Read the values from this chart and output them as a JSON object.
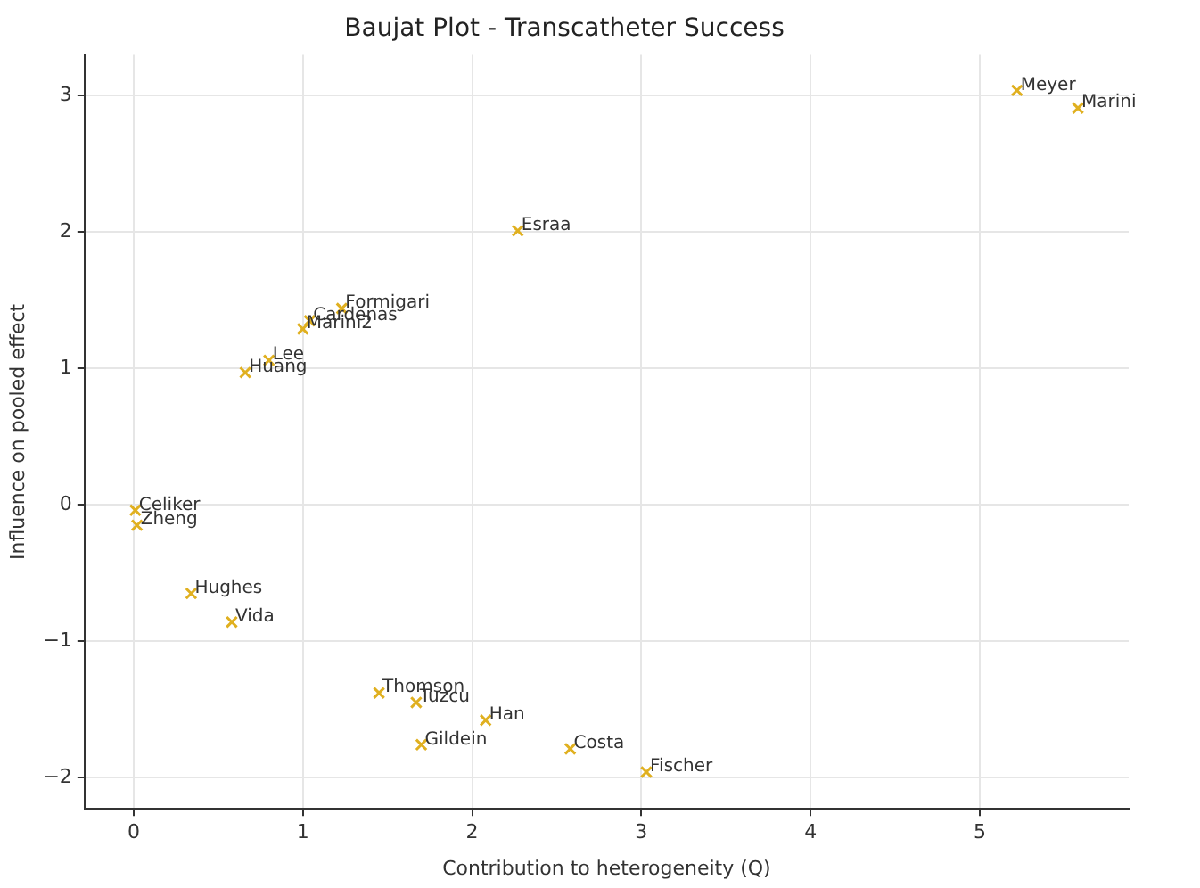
{
  "chart_data": {
    "type": "scatter",
    "title": "Baujat Plot - Transcatheter Success",
    "xlabel": "Contribution to heterogeneity (Q)",
    "ylabel": "Influence on pooled effect",
    "x": [
      5.22,
      5.58,
      2.27,
      1.23,
      1.04,
      1.0,
      0.8,
      0.66,
      0.01,
      0.02,
      0.34,
      0.58,
      1.45,
      1.67,
      1.7,
      2.08,
      2.58,
      3.03
    ],
    "values": [
      3.04,
      2.91,
      2.01,
      1.44,
      1.35,
      1.29,
      1.06,
      0.97,
      -0.04,
      -0.15,
      -0.65,
      -0.86,
      -1.38,
      -1.45,
      -1.76,
      -1.58,
      -1.79,
      -1.96
    ],
    "color": "#e0b020",
    "marker": "cross",
    "grid": true,
    "xlim": [
      -0.29,
      5.88
    ],
    "xticks": [
      0,
      1,
      2,
      3,
      4,
      5
    ],
    "ylim": [
      -2.23,
      3.3
    ],
    "yticks": [
      -2,
      -1,
      0,
      1,
      2,
      3
    ],
    "annotations": [
      {
        "text": "Meyer",
        "x": 5.22,
        "y": 3.04
      },
      {
        "text": "Marini",
        "x": 5.58,
        "y": 2.91
      },
      {
        "text": "Esraa",
        "x": 2.27,
        "y": 2.01
      },
      {
        "text": "Formigari",
        "x": 1.23,
        "y": 1.44
      },
      {
        "text": "Cardenas",
        "x": 1.04,
        "y": 1.35
      },
      {
        "text": "Marini2",
        "x": 1.0,
        "y": 1.29
      },
      {
        "text": "Lee",
        "x": 0.8,
        "y": 1.06
      },
      {
        "text": "Huang",
        "x": 0.66,
        "y": 0.97
      },
      {
        "text": "Celiker",
        "x": 0.01,
        "y": -0.04
      },
      {
        "text": "Zheng",
        "x": 0.02,
        "y": -0.15
      },
      {
        "text": "Hughes",
        "x": 0.34,
        "y": -0.65
      },
      {
        "text": "Vida",
        "x": 0.58,
        "y": -0.86
      },
      {
        "text": "Thomson",
        "x": 1.45,
        "y": -1.38
      },
      {
        "text": "Tuzcu",
        "x": 1.67,
        "y": -1.45
      },
      {
        "text": "Gildein",
        "x": 1.7,
        "y": -1.76
      },
      {
        "text": "Han",
        "x": 2.08,
        "y": -1.58
      },
      {
        "text": "Costa",
        "x": 2.58,
        "y": -1.79
      },
      {
        "text": "Fischer",
        "x": 3.03,
        "y": -1.96
      }
    ]
  }
}
